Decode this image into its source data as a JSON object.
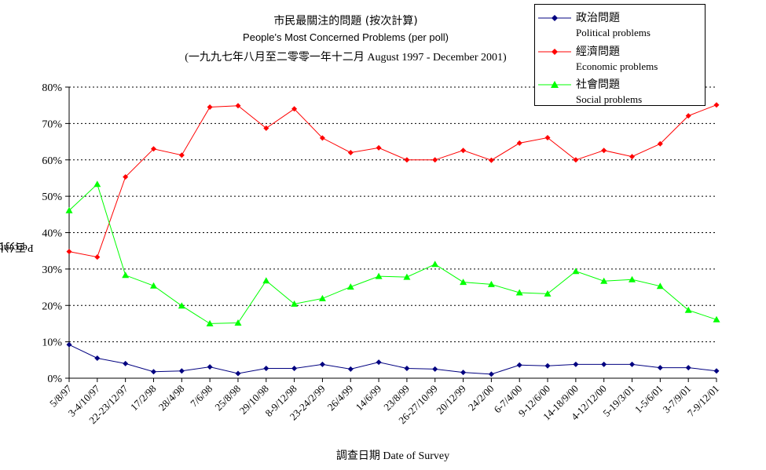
{
  "title_zh": "市民最關注的問題 (按次計算)",
  "title_en": "People's Most Concerned Problems  (per poll)",
  "title_period": "(一九九七年八月至二零零一年十二月 August 1997 - December 2001)",
  "ylabel_zh": "百分比",
  "ylabel_en": "Percentage",
  "xlabel_zh": "調查日期",
  "xlabel_en": "Date of Survey",
  "legend": [
    {
      "zh": "政治問題",
      "en": "Political problems",
      "color": "#000080",
      "marker": "diamond"
    },
    {
      "zh": "經濟問題",
      "en": "Economic problems",
      "color": "#ff0000",
      "marker": "diamond"
    },
    {
      "zh": "社會問題",
      "en": "Social problems",
      "color": "#00ff00",
      "marker": "triangle"
    }
  ],
  "chart_data": {
    "type": "line",
    "categories": [
      "5/8/97",
      "3-4/10/97",
      "22-23/12/97",
      "17/2/98",
      "28/4/98",
      "7/6/98",
      "25/8/98",
      "29/10/98",
      "8-9/12/98",
      "23-24/2/99",
      "26/4/99",
      "14/6/99",
      "23/8/99",
      "26-27/10/99",
      "20/12/99",
      "24/2/00",
      "6-7/4/00",
      "9-12/6/00",
      "14-18/9/00",
      "4-12/12/00",
      "5-19/3/01",
      "1-5/6/01",
      "3-7/9/01",
      "7-9/12/01"
    ],
    "yticks": [
      "0%",
      "10%",
      "20%",
      "30%",
      "40%",
      "50%",
      "60%",
      "70%",
      "80%"
    ],
    "ylim": [
      0,
      80
    ],
    "grid": "horizontal dotted",
    "legend_position": "top-right",
    "series": [
      {
        "name": "政治問題 Political problems",
        "color": "#000080",
        "marker": "diamond",
        "values": [
          9.2,
          5.5,
          4.0,
          1.8,
          2.0,
          3.1,
          1.3,
          2.7,
          2.7,
          3.8,
          2.5,
          4.4,
          2.7,
          2.5,
          1.6,
          1.1,
          3.6,
          3.4,
          3.8,
          3.8,
          3.8,
          2.9,
          2.9,
          2.0
        ]
      },
      {
        "name": "經濟問題 Economic problems",
        "color": "#ff0000",
        "marker": "diamond",
        "values": [
          34.8,
          33.3,
          55.3,
          63.0,
          61.3,
          74.5,
          74.9,
          68.7,
          74.0,
          66.0,
          62.0,
          63.3,
          60.0,
          60.0,
          62.6,
          59.9,
          64.6,
          66.1,
          60.0,
          62.6,
          60.9,
          64.4,
          72.1,
          75.1
        ]
      },
      {
        "name": "社會問題 Social problems",
        "color": "#00ff00",
        "marker": "triangle",
        "values": [
          46.1,
          53.3,
          28.3,
          25.4,
          19.9,
          15.0,
          15.2,
          26.8,
          20.4,
          21.9,
          25.1,
          28.0,
          27.8,
          31.3,
          26.4,
          25.8,
          23.5,
          23.2,
          29.4,
          26.7,
          27.1,
          25.3,
          18.7,
          16.1
        ]
      }
    ]
  }
}
